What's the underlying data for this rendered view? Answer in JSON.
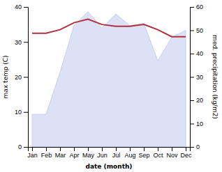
{
  "chart_data": {
    "type": "line",
    "categories": [
      "Jan",
      "Feb",
      "Mar",
      "Apr",
      "May",
      "Jun",
      "Jul",
      "Aug",
      "Sep",
      "Oct",
      "Nov",
      "Dec"
    ],
    "xlabel": "date (month)",
    "ylabel": "max temp (C)",
    "y2label": "med. precipitation (kg/m2)",
    "ylim": [
      0,
      40
    ],
    "yticks": [
      0,
      10,
      20,
      30,
      40
    ],
    "y2lim": [
      0,
      60
    ],
    "y2ticks": [
      0,
      10,
      20,
      30,
      40,
      50,
      60
    ],
    "grid": false,
    "series": [
      {
        "type": "area",
        "axis": "y2",
        "color": "#c0c8ee",
        "values": [
          14,
          14,
          32,
          52,
          58,
          51,
          57,
          52,
          53,
          37,
          47,
          50
        ]
      },
      {
        "type": "line",
        "color": "#b03040",
        "values": [
          32.5,
          32.5,
          33.5,
          35.5,
          36.5,
          35.0,
          34.5,
          34.5,
          35.0,
          33.5,
          31.5,
          31.5
        ]
      }
    ]
  }
}
